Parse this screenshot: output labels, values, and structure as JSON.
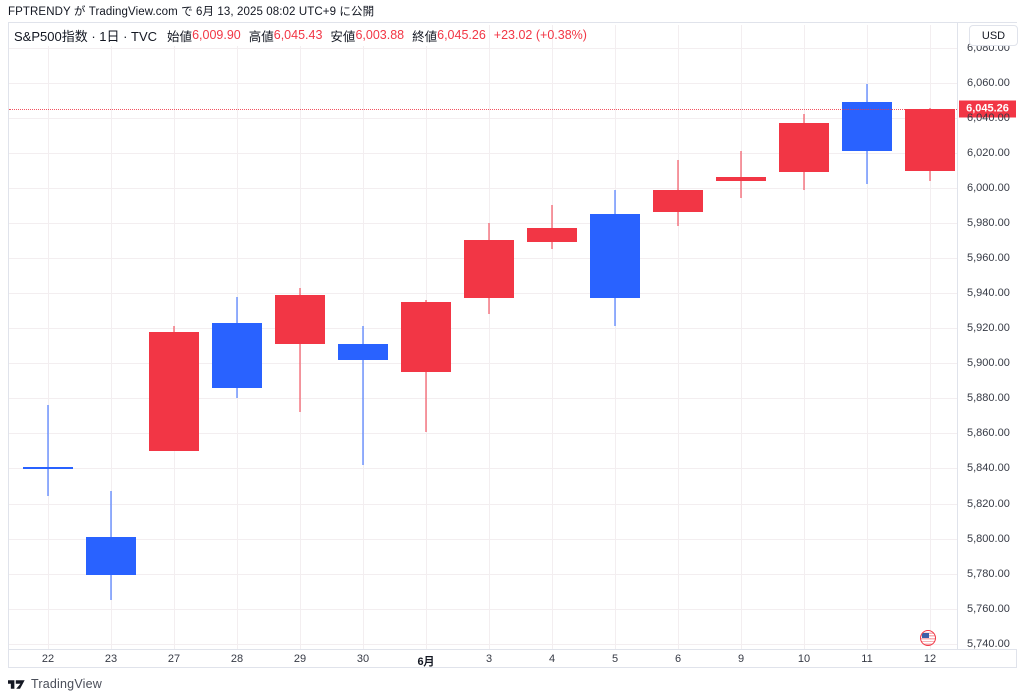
{
  "header": {
    "attribution": "FPTRENDY が TradingView.com で 6月 13, 2025 08:02 UTC+9 に公開"
  },
  "toolbar": {
    "currency_label": "USD"
  },
  "legend": {
    "title": "S&P500指数 · 1日 · TVC",
    "open_label": "始値",
    "open_value": "6,009.90",
    "high_label": "高値",
    "high_value": "6,045.43",
    "low_label": "安値",
    "low_value": "6,003.88",
    "close_label": "終値",
    "close_value": "6,045.26",
    "change_text": "+23.02 (+0.38%)"
  },
  "price_scale": {
    "last_price_label": "6,045.26"
  },
  "footer": {
    "brand": "TradingView"
  },
  "colors": {
    "up": "#f23645",
    "down": "#2962ff",
    "grid": "#f3eef0",
    "border": "#e0e3eb",
    "axis_text": "#363a45",
    "last_price_bg": "#f23645"
  },
  "chart_data": {
    "type": "candlestick",
    "title": "S&P500指数 1日 TVC",
    "ylabel": "USD",
    "ylim": [
      5737,
      6094
    ],
    "y_tick_step": 20,
    "y_tick_min": 5740,
    "y_tick_max": 6080,
    "grid": "on",
    "last_close": 6045.26,
    "categories": [
      "22",
      "23",
      "27",
      "28",
      "29",
      "30",
      "6月",
      "3",
      "4",
      "5",
      "6",
      "9",
      "10",
      "11",
      "12"
    ],
    "candles": [
      {
        "date": "22",
        "open": 5841,
        "high": 5876,
        "low": 5824,
        "close": 5840
      },
      {
        "date": "23",
        "open": 5801,
        "high": 5827,
        "low": 5765,
        "close": 5779
      },
      {
        "date": "27",
        "open": 5850,
        "high": 5921,
        "low": 5850,
        "close": 5918
      },
      {
        "date": "28",
        "open": 5923,
        "high": 5938,
        "low": 5880,
        "close": 5886
      },
      {
        "date": "29",
        "open": 5911,
        "high": 5943,
        "low": 5872,
        "close": 5939
      },
      {
        "date": "30",
        "open": 5911,
        "high": 5921,
        "low": 5842,
        "close": 5902
      },
      {
        "date": "6月",
        "open": 5895,
        "high": 5936,
        "low": 5861,
        "close": 5935,
        "major": true
      },
      {
        "date": "3",
        "open": 5937,
        "high": 5980,
        "low": 5928,
        "close": 5970
      },
      {
        "date": "4",
        "open": 5969,
        "high": 5990,
        "low": 5965,
        "close": 5977
      },
      {
        "date": "5",
        "open": 5985,
        "high": 5999,
        "low": 5921,
        "close": 5937
      },
      {
        "date": "6",
        "open": 5986,
        "high": 6016,
        "low": 5978,
        "close": 5999
      },
      {
        "date": "9",
        "open": 6004,
        "high": 6021,
        "low": 5994,
        "close": 6006
      },
      {
        "date": "10",
        "open": 6009,
        "high": 6042,
        "low": 5999,
        "close": 6037
      },
      {
        "date": "11",
        "open": 6049,
        "high": 6059,
        "low": 6002,
        "close": 6021
      },
      {
        "date": "12",
        "open": 6009.9,
        "high": 6045.43,
        "low": 6003.88,
        "close": 6045.26
      }
    ]
  }
}
